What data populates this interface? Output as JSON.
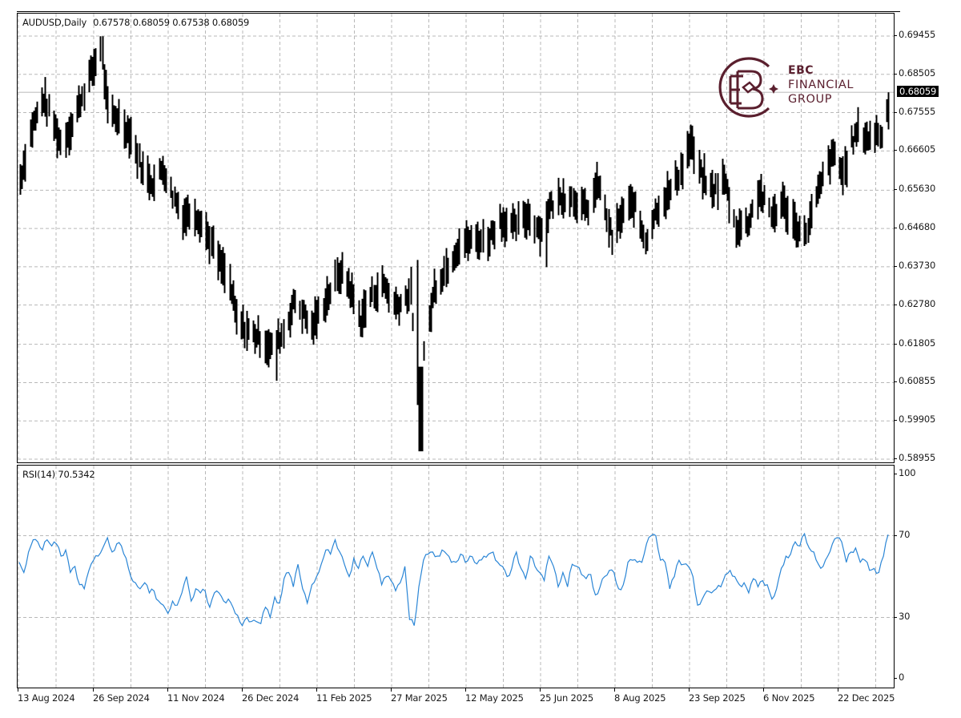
{
  "header": {
    "symbol_timeframe": "AUDUSD,Daily",
    "ohlc": "0.67578 0.68059 0.67538 0.68059"
  },
  "indicator": {
    "label": "RSI(14) 70.5342"
  },
  "logo": {
    "line1": "EBC",
    "line2": "FINANCIAL",
    "line3": "GROUP",
    "color": "#5a1f2e"
  },
  "current_price": {
    "label": "0.68059",
    "value": 0.68059
  },
  "colors": {
    "bars": "#000000",
    "rsi_line": "#2b86d6",
    "grid": "#b8b8b8",
    "current_price_line": "#c0c0c0"
  },
  "chart_data": [
    {
      "type": "ohlc",
      "title": "AUDUSD,Daily",
      "xlabel": "",
      "ylabel": "",
      "ylim": [
        0.58955,
        0.69455
      ],
      "y_ticks": [
        "0.69455",
        "0.68505",
        "0.67555",
        "0.66605",
        "0.65630",
        "0.64680",
        "0.63730",
        "0.62780",
        "0.61805",
        "0.60855",
        "0.59905",
        "0.58955"
      ],
      "x_ticks": [
        "13 Aug 2024",
        "26 Sep 2024",
        "11 Nov 2024",
        "26 Dec 2024",
        "11 Feb 2025",
        "27 Mar 2025",
        "12 May 2025",
        "25 Jun 2025",
        "8 Aug 2025",
        "23 Sep 2025",
        "6 Nov 2025",
        "22 Dec 2025"
      ],
      "grid": true,
      "last_bar": {
        "open": 0.67578,
        "high": 0.68059,
        "low": 0.67538,
        "close": 0.68059
      },
      "price_path_anchors": [
        [
          "2024-08-13",
          0.659
        ],
        [
          "2024-08-20",
          0.672
        ],
        [
          "2024-08-27",
          0.679
        ],
        [
          "2024-09-03",
          0.6715
        ],
        [
          "2024-09-06",
          0.668
        ],
        [
          "2024-09-13",
          0.6725
        ],
        [
          "2024-09-20",
          0.681
        ],
        [
          "2024-09-26",
          0.687
        ],
        [
          "2024-09-30",
          0.692
        ],
        [
          "2024-10-04",
          0.676
        ],
        [
          "2024-10-11",
          0.674
        ],
        [
          "2024-10-18",
          0.67
        ],
        [
          "2024-10-25",
          0.661
        ],
        [
          "2024-11-01",
          0.658
        ],
        [
          "2024-11-06",
          0.662
        ],
        [
          "2024-11-11",
          0.656
        ],
        [
          "2024-11-18",
          0.65
        ],
        [
          "2024-11-25",
          0.651
        ],
        [
          "2024-12-02",
          0.646
        ],
        [
          "2024-12-09",
          0.639
        ],
        [
          "2024-12-16",
          0.633
        ],
        [
          "2024-12-20",
          0.624
        ],
        [
          "2024-12-26",
          0.6215
        ],
        [
          "2025-01-02",
          0.62
        ],
        [
          "2025-01-10",
          0.617
        ],
        [
          "2025-01-17",
          0.621
        ],
        [
          "2025-01-24",
          0.629
        ],
        [
          "2025-02-03",
          0.622
        ],
        [
          "2025-02-11",
          0.629
        ],
        [
          "2025-02-20",
          0.636
        ],
        [
          "2025-02-25",
          0.633
        ],
        [
          "2025-03-04",
          0.624
        ],
        [
          "2025-03-10",
          0.63
        ],
        [
          "2025-03-18",
          0.633
        ],
        [
          "2025-03-24",
          0.628
        ],
        [
          "2025-03-27",
          0.628
        ],
        [
          "2025-04-03",
          0.631
        ],
        [
          "2025-04-07",
          0.606
        ],
        [
          "2025-04-09",
          0.6
        ],
        [
          "2025-04-11",
          0.616
        ],
        [
          "2025-04-17",
          0.632
        ],
        [
          "2025-04-24",
          0.637
        ],
        [
          "2025-05-02",
          0.643
        ],
        [
          "2025-05-12",
          0.644
        ],
        [
          "2025-05-19",
          0.644
        ],
        [
          "2025-05-26",
          0.649
        ],
        [
          "2025-06-03",
          0.647
        ],
        [
          "2025-06-12",
          0.65
        ],
        [
          "2025-06-20",
          0.646
        ],
        [
          "2025-06-25",
          0.652
        ],
        [
          "2025-07-03",
          0.655
        ],
        [
          "2025-07-10",
          0.654
        ],
        [
          "2025-07-17",
          0.651
        ],
        [
          "2025-07-24",
          0.658
        ],
        [
          "2025-08-01",
          0.644
        ],
        [
          "2025-08-08",
          0.651
        ],
        [
          "2025-08-14",
          0.653
        ],
        [
          "2025-08-21",
          0.644
        ],
        [
          "2025-08-28",
          0.652
        ],
        [
          "2025-09-05",
          0.656
        ],
        [
          "2025-09-12",
          0.662
        ],
        [
          "2025-09-17",
          0.668
        ],
        [
          "2025-09-23",
          0.66
        ],
        [
          "2025-09-30",
          0.656
        ],
        [
          "2025-10-07",
          0.659
        ],
        [
          "2025-10-14",
          0.647
        ],
        [
          "2025-10-21",
          0.648
        ],
        [
          "2025-10-28",
          0.656
        ],
        [
          "2025-11-04",
          0.65
        ],
        [
          "2025-11-11",
          0.653
        ],
        [
          "2025-11-18",
          0.648
        ],
        [
          "2025-11-24",
          0.645
        ],
        [
          "2025-12-01",
          0.654
        ],
        [
          "2025-12-08",
          0.663
        ],
        [
          "2025-12-12",
          0.665
        ],
        [
          "2025-12-17",
          0.66
        ],
        [
          "2025-12-22",
          0.668
        ],
        [
          "2025-12-26",
          0.671
        ],
        [
          "2026-01-02",
          0.669
        ],
        [
          "2026-01-07",
          0.671
        ],
        [
          "2026-01-09",
          0.669
        ],
        [
          "2026-01-13",
          0.6806
        ]
      ],
      "extremes": {
        "high": 0.6945,
        "high_date": "2024-09-30",
        "low": 0.5915,
        "low_date": "2025-04-09"
      }
    },
    {
      "type": "line",
      "title": "RSI(14) 70.5342",
      "ylim": [
        0,
        100
      ],
      "y_ticks": [
        "100",
        "70",
        "30",
        "0"
      ],
      "levels": [
        70,
        30
      ],
      "last_value": 70.5342,
      "series": [
        {
          "name": "RSI(14)",
          "values": [
            57,
            52,
            62,
            68,
            67,
            63,
            68,
            65,
            66,
            60,
            63,
            52,
            55,
            46,
            44,
            53,
            58,
            60,
            64,
            69,
            62,
            66,
            65,
            59,
            50,
            47,
            44,
            47,
            42,
            43,
            38,
            36,
            32,
            38,
            36,
            42,
            50,
            38,
            44,
            42,
            43,
            35,
            42,
            42,
            38,
            39,
            35,
            31,
            26,
            30,
            28,
            28,
            27,
            35,
            30,
            40,
            37,
            49,
            52,
            45,
            56,
            44,
            37,
            46,
            50,
            56,
            63,
            61,
            68,
            62,
            56,
            50,
            59,
            54,
            60,
            55,
            62,
            54,
            46,
            50,
            48,
            43,
            47,
            55,
            29,
            26,
            45,
            58,
            61,
            62,
            60,
            63,
            61,
            57,
            57,
            61,
            57,
            60,
            57,
            58,
            60,
            61,
            62,
            57,
            55,
            50,
            54,
            62,
            54,
            49,
            60,
            55,
            52,
            48,
            60,
            55,
            45,
            52,
            45,
            56,
            55,
            51,
            49,
            51,
            41,
            45,
            50,
            53,
            52,
            44,
            46,
            57,
            58,
            57,
            57,
            66,
            70,
            70,
            58,
            57,
            44,
            50,
            58,
            56,
            55,
            50,
            36,
            39,
            43,
            42,
            44,
            45,
            51,
            53,
            50,
            46,
            47,
            42,
            49,
            45,
            48,
            46,
            39,
            44,
            54,
            60,
            61,
            67,
            65,
            71,
            64,
            62,
            56,
            55,
            60,
            66,
            69,
            67,
            57,
            62,
            64,
            57,
            58,
            53,
            54,
            52,
            60,
            70.5342
          ]
        }
      ]
    }
  ]
}
